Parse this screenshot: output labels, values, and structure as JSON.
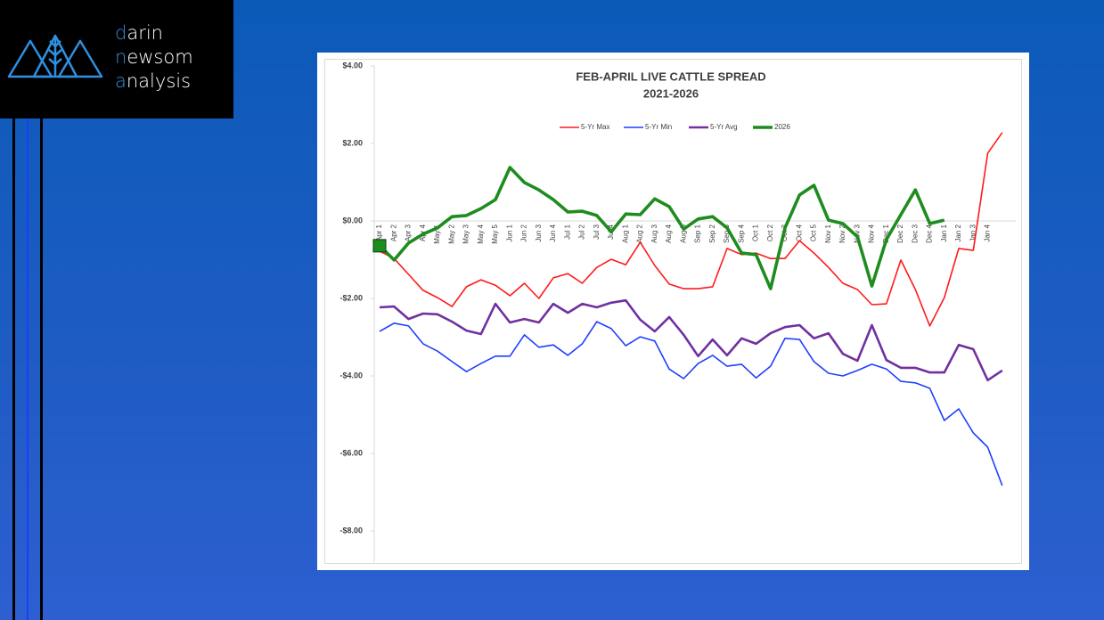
{
  "logo": {
    "words": [
      "darin",
      "newsom",
      "analysis"
    ]
  },
  "chart_data": {
    "type": "line",
    "title": "FEB-APRIL LIVE CATTLE SPREAD",
    "subtitle": "2021-2026",
    "categories": [
      "Apr 1",
      "Apr 2",
      "Apr 3",
      "Apr 4",
      "May 1",
      "May 2",
      "May 3",
      "May 4",
      "May 5",
      "Jun 1",
      "Jun 2",
      "Jun 3",
      "Jun 4",
      "Jul 1",
      "Jul 2",
      "Jul 3",
      "Jul 4",
      "Aug 1",
      "Aug 2",
      "Aug 3",
      "Aug 4",
      "Aug 5",
      "Sep 1",
      "Sep 2",
      "Sep 3",
      "Sep 4",
      "Oct 1",
      "Oct 2",
      "Oct 3",
      "Oct 4",
      "Oct 5",
      "Nov 1",
      "Nov 2",
      "Nov 3",
      "Nov 4",
      "Dec 1",
      "Dec 2",
      "Dec 3",
      "Dec 4",
      "Jan 1",
      "Jan 2",
      "Jan 3",
      "Jan 4",
      null
    ],
    "series": [
      {
        "name": "5-Yr Max",
        "color": "#ff1a1a",
        "width": 1.6,
        "values": [
          -0.78,
          -0.97,
          -1.38,
          -1.79,
          -1.98,
          -2.21,
          -1.7,
          -1.52,
          -1.66,
          -1.93,
          -1.61,
          -2.0,
          -1.47,
          -1.36,
          -1.61,
          -1.2,
          -0.99,
          -1.13,
          -0.55,
          -1.15,
          -1.63,
          -1.75,
          -1.75,
          -1.7,
          -0.71,
          -0.87,
          -0.83,
          -0.97,
          -0.97,
          -0.51,
          -0.83,
          -1.2,
          -1.61,
          -1.77,
          -2.16,
          -2.14,
          -1.01,
          -1.77,
          -2.71,
          -1.98,
          -0.71,
          -0.76,
          1.75,
          2.28
        ]
      },
      {
        "name": "5-Yr Min",
        "color": "#1f3fff",
        "width": 1.6,
        "values": [
          -2.85,
          -2.64,
          -2.71,
          -3.17,
          -3.36,
          -3.63,
          -3.89,
          -3.68,
          -3.49,
          -3.49,
          -2.94,
          -3.26,
          -3.2,
          -3.47,
          -3.17,
          -2.6,
          -2.78,
          -3.22,
          -2.99,
          -3.1,
          -3.82,
          -4.07,
          -3.68,
          -3.47,
          -3.75,
          -3.7,
          -4.05,
          -3.75,
          -3.03,
          -3.06,
          -3.63,
          -3.93,
          -4.0,
          -3.86,
          -3.7,
          -3.82,
          -4.14,
          -4.18,
          -4.32,
          -5.15,
          -4.85,
          -5.47,
          -5.84,
          -6.83
        ]
      },
      {
        "name": "5-Yr Avg",
        "color": "#7030a0",
        "width": 2.6,
        "values": [
          -2.23,
          -2.21,
          -2.53,
          -2.39,
          -2.41,
          -2.6,
          -2.83,
          -2.92,
          -2.14,
          -2.62,
          -2.53,
          -2.62,
          -2.14,
          -2.37,
          -2.14,
          -2.23,
          -2.11,
          -2.05,
          -2.55,
          -2.85,
          -2.48,
          -2.94,
          -3.49,
          -3.06,
          -3.47,
          -3.03,
          -3.17,
          -2.9,
          -2.74,
          -2.69,
          -3.03,
          -2.9,
          -3.43,
          -3.61,
          -2.69,
          -3.59,
          -3.79,
          -3.79,
          -3.91,
          -3.91,
          -3.2,
          -3.31,
          -4.11,
          -3.86
        ]
      },
      {
        "name": "2026",
        "color": "#1e8c1e",
        "width": 3.6,
        "values": [
          -0.64,
          -1.01,
          -0.57,
          -0.34,
          -0.18,
          0.11,
          0.14,
          0.32,
          0.55,
          1.38,
          0.99,
          0.8,
          0.55,
          0.23,
          0.25,
          0.14,
          -0.28,
          0.18,
          0.16,
          0.57,
          0.37,
          -0.21,
          0.05,
          0.11,
          -0.18,
          -0.83,
          -0.87,
          -1.75,
          -0.18,
          0.67,
          0.92,
          0.02,
          -0.07,
          -0.41,
          -1.68,
          -0.48,
          0.16,
          0.8,
          -0.07,
          0.02,
          null,
          null,
          null,
          null
        ]
      }
    ],
    "ylim": [
      -8.8,
      4
    ],
    "yticks": [
      {
        "value": 4,
        "label": "$4.00"
      },
      {
        "value": 2,
        "label": "$2.00"
      },
      {
        "value": 0,
        "label": "$0.00"
      },
      {
        "value": -2,
        "label": "-$2.00"
      },
      {
        "value": -4,
        "label": "-$4.00"
      },
      {
        "value": -6,
        "label": "-$6.00"
      },
      {
        "value": -8,
        "label": "-$8.00"
      }
    ],
    "grid": false,
    "legend": "top"
  }
}
